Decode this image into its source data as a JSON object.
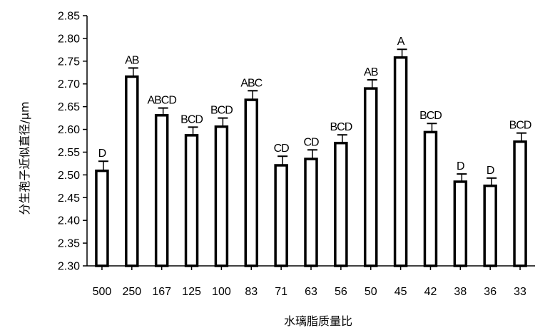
{
  "chart_data": {
    "type": "bar",
    "title": "",
    "xlabel": "水璃脂质量比",
    "ylabel": "分生孢子近似直径/μm",
    "ylim": [
      2.3,
      2.85
    ],
    "yticks": [
      "2.30",
      "2.35",
      "2.40",
      "2.45",
      "2.50",
      "2.55",
      "2.60",
      "2.65",
      "2.70",
      "2.75",
      "2.80",
      "2.85"
    ],
    "categories": [
      "500",
      "250",
      "167",
      "125",
      "100",
      "83",
      "71",
      "63",
      "56",
      "50",
      "45",
      "42",
      "38",
      "36",
      "33"
    ],
    "values": [
      2.509,
      2.716,
      2.631,
      2.587,
      2.606,
      2.665,
      2.521,
      2.535,
      2.57,
      2.69,
      2.758,
      2.594,
      2.485,
      2.476,
      2.573
    ],
    "error": [
      0.021,
      0.019,
      0.016,
      0.018,
      0.019,
      0.02,
      0.02,
      0.02,
      0.018,
      0.019,
      0.018,
      0.019,
      0.017,
      0.017,
      0.019
    ],
    "significance": [
      "D",
      "AB",
      "ABCD",
      "BCD",
      "BCD",
      "ABC",
      "CD",
      "CD",
      "BCD",
      "AB",
      "A",
      "BCD",
      "D",
      "D",
      "BCD"
    ],
    "bar_fill": "#ffffff",
    "bar_stroke": "#000000",
    "grid": false,
    "legend": "none"
  }
}
